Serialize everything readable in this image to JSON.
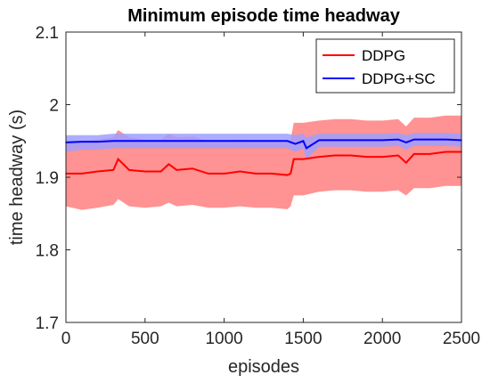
{
  "chart_data": {
    "type": "line",
    "title": "Minimum episode time headway",
    "xlabel": "episodes",
    "ylabel": "time headway (s)",
    "xlim": [
      0,
      2500
    ],
    "ylim": [
      1.7,
      2.1
    ],
    "xticks": [
      0,
      500,
      1000,
      1500,
      2000,
      2500
    ],
    "yticks": [
      1.7,
      1.8,
      1.9,
      2.0,
      2.1
    ],
    "xtick_labels": [
      "0",
      "500",
      "1000",
      "1500",
      "2000",
      "2500"
    ],
    "ytick_labels": [
      "1.7",
      "1.8",
      "1.9",
      "2",
      "2.1"
    ],
    "grid": false,
    "legend_position": "top-right",
    "series": [
      {
        "name": "DDPG",
        "color": "#ff0000",
        "band_color": "#ff7f7f",
        "x": [
          0,
          100,
          200,
          300,
          330,
          400,
          500,
          600,
          650,
          700,
          800,
          900,
          1000,
          1100,
          1200,
          1300,
          1400,
          1420,
          1440,
          1500,
          1600,
          1700,
          1800,
          1900,
          2000,
          2100,
          2150,
          2200,
          2300,
          2400,
          2500
        ],
        "values": [
          1.905,
          1.905,
          1.908,
          1.91,
          1.925,
          1.91,
          1.908,
          1.908,
          1.918,
          1.91,
          1.912,
          1.905,
          1.905,
          1.908,
          1.905,
          1.905,
          1.903,
          1.905,
          1.925,
          1.925,
          1.928,
          1.93,
          1.93,
          1.928,
          1.928,
          1.93,
          1.92,
          1.932,
          1.932,
          1.935,
          1.935
        ],
        "band_lower": [
          1.86,
          1.855,
          1.858,
          1.862,
          1.87,
          1.86,
          1.858,
          1.86,
          1.865,
          1.86,
          1.862,
          1.858,
          1.858,
          1.86,
          1.858,
          1.858,
          1.856,
          1.86,
          1.875,
          1.875,
          1.88,
          1.882,
          1.882,
          1.88,
          1.88,
          1.882,
          1.875,
          1.885,
          1.885,
          1.888,
          1.888
        ],
        "band_upper": [
          1.95,
          1.95,
          1.952,
          1.955,
          1.965,
          1.955,
          1.952,
          1.952,
          1.96,
          1.955,
          1.956,
          1.95,
          1.95,
          1.952,
          1.95,
          1.95,
          1.95,
          1.952,
          1.975,
          1.975,
          1.978,
          1.98,
          1.98,
          1.978,
          1.978,
          1.98,
          1.97,
          1.982,
          1.982,
          1.985,
          1.985
        ]
      },
      {
        "name": "DDPG+SC",
        "color": "#0000ff",
        "band_color": "#9f9fff",
        "x": [
          0,
          100,
          200,
          300,
          400,
          500,
          600,
          700,
          800,
          900,
          1000,
          1100,
          1200,
          1300,
          1400,
          1450,
          1500,
          1520,
          1600,
          1700,
          1800,
          1900,
          2000,
          2100,
          2150,
          2200,
          2300,
          2400,
          2500
        ],
        "values": [
          1.948,
          1.949,
          1.949,
          1.95,
          1.95,
          1.95,
          1.95,
          1.95,
          1.95,
          1.95,
          1.95,
          1.95,
          1.95,
          1.95,
          1.95,
          1.946,
          1.95,
          1.94,
          1.951,
          1.951,
          1.951,
          1.951,
          1.951,
          1.952,
          1.948,
          1.952,
          1.952,
          1.952,
          1.951
        ],
        "band_lower": [
          1.935,
          1.938,
          1.938,
          1.94,
          1.94,
          1.94,
          1.94,
          1.94,
          1.94,
          1.94,
          1.94,
          1.94,
          1.94,
          1.94,
          1.94,
          1.935,
          1.94,
          1.925,
          1.942,
          1.942,
          1.942,
          1.942,
          1.942,
          1.943,
          1.938,
          1.943,
          1.943,
          1.943,
          1.942
        ],
        "band_upper": [
          1.958,
          1.958,
          1.958,
          1.96,
          1.96,
          1.96,
          1.96,
          1.96,
          1.96,
          1.96,
          1.96,
          1.96,
          1.96,
          1.96,
          1.96,
          1.958,
          1.96,
          1.955,
          1.96,
          1.96,
          1.96,
          1.96,
          1.96,
          1.961,
          1.958,
          1.961,
          1.961,
          1.961,
          1.96
        ]
      }
    ]
  }
}
